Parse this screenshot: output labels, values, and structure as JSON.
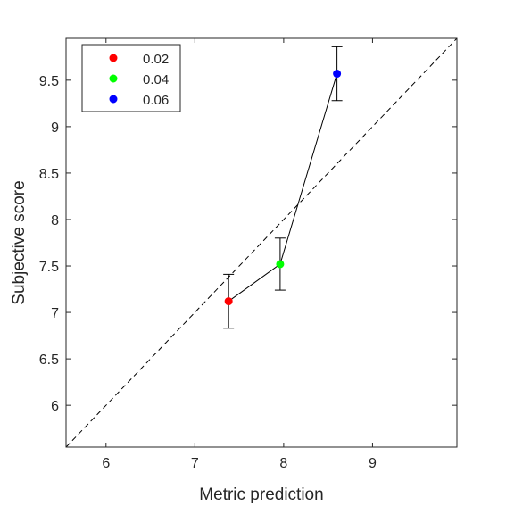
{
  "chart_data": {
    "type": "scatter",
    "title": "",
    "xlabel": "Metric prediction",
    "ylabel": "Subjective score",
    "xlim": [
      5.55,
      9.95
    ],
    "ylim": [
      5.55,
      9.95
    ],
    "xticks": [
      6,
      7,
      8,
      9
    ],
    "yticks": [
      6,
      6.5,
      7,
      7.5,
      8,
      8.5,
      9,
      9.5
    ],
    "xtick_labels": [
      "6",
      "7",
      "8",
      "9"
    ],
    "ytick_labels": [
      "6",
      "6.5",
      "7",
      "7.5",
      "8",
      "8.5",
      "9",
      "9.5"
    ],
    "grid": false,
    "box": true,
    "legend_position": "top-left",
    "reference_line": {
      "style": "dashed",
      "from": [
        5.55,
        5.55
      ],
      "to": [
        9.95,
        9.95
      ]
    },
    "connecting_line": true,
    "points": [
      {
        "name": "0.02",
        "x": 7.38,
        "y": 7.12,
        "err_low": 6.83,
        "err_high": 7.41,
        "color": "#ff0000"
      },
      {
        "name": "0.04",
        "x": 7.96,
        "y": 7.52,
        "err_low": 7.24,
        "err_high": 7.8,
        "color": "#00ff00"
      },
      {
        "name": "0.06",
        "x": 8.6,
        "y": 9.57,
        "err_low": 9.28,
        "err_high": 9.86,
        "color": "#0000ff"
      }
    ]
  }
}
